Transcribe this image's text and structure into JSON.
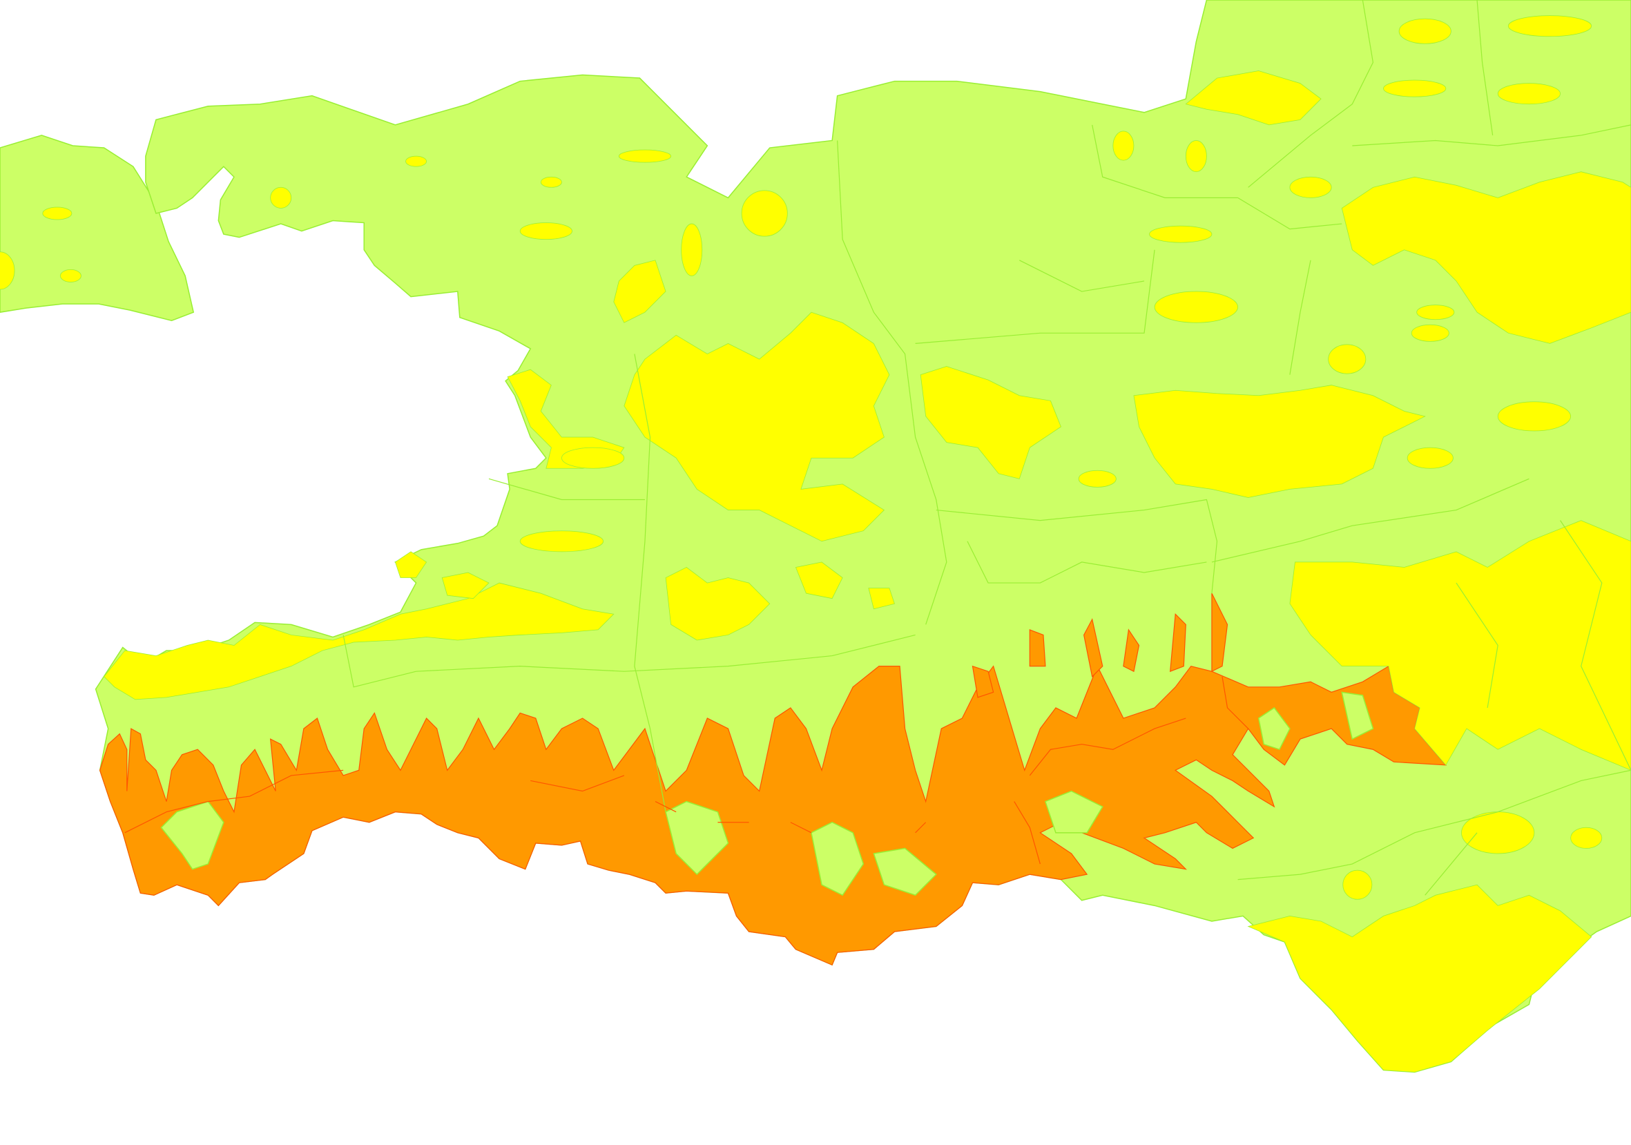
{
  "map": {
    "background": "#ffffff",
    "colors": {
      "zone_green": "#ccff66",
      "zone_yellow": "#ffff00",
      "zone_orange": "#ff9900",
      "border_green": "#99ee33",
      "border_orange": "#ff5500"
    }
  }
}
